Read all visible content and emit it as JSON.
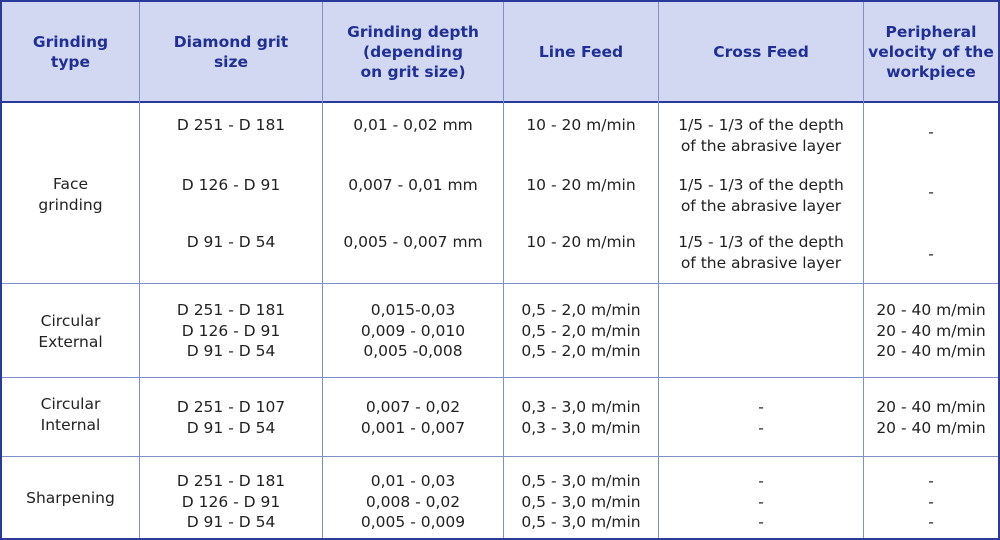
{
  "headers": {
    "grinding_type": "Grinding\ntype",
    "diamond_grit_size": "Diamond grit\nsize",
    "grinding_depth": "Grinding depth\n(depending\non grit size)",
    "line_feed": "Line Feed",
    "cross_feed": "Cross Feed",
    "peripheral_velocity": "Peripheral\nvelocity of the\nworkpiece"
  },
  "face": {
    "type": "Face\ngrinding",
    "r1": {
      "grit": "D 251 - D 181",
      "depth": "0,01 - 0,02 mm",
      "line": "10 - 20 m/min",
      "cross": "1/5  -  1/3 of the depth\nof the  abrasive layer",
      "vel": "-"
    },
    "r2": {
      "grit": "D 126 - D 91",
      "depth": "0,007 - 0,01 mm",
      "line": "10 -  20 m/min",
      "cross": "1/5 - 1/3 of the  depth\nof the abrasive layer",
      "vel": "-"
    },
    "r3": {
      "grit": "D 91 - D 54",
      "depth": "0,005 - 0,007 mm",
      "line": "10 -   20 m/min",
      "cross": "1/5 - 1/3 of the depth\nof the abrasive layer",
      "vel": "-"
    }
  },
  "circular_external": {
    "type": "Circular\nExternal",
    "grit": "D 251 - D 181\nD 126 - D 91\nD 91 - D 54",
    "depth": "0,015-0,03\n0,009 - 0,010\n0,005 -0,008",
    "line": "0,5 - 2,0 m/min\n0,5 - 2,0 m/min\n0,5 - 2,0 m/min",
    "cross": "",
    "vel": "20 - 40 m/min\n20 - 40 m/min\n20 - 40 m/min"
  },
  "circular_internal": {
    "type": "Circular\nInternal",
    "grit": "D 251 -   D 107\nD 91 - D 54",
    "depth": "0,007 - 0,02\n0,001 - 0,007",
    "line": "0,3 - 3,0 m/min\n0,3 - 3,0 m/min",
    "cross": "-\n-",
    "vel": "20 - 40 m/min\n20 - 40 m/min"
  },
  "sharpening": {
    "type": "Sharpening",
    "grit": "D 251 -   D 181\nD 126 - D 91\nD 91 - D 54",
    "depth": "0,01 - 0,03\n0,008 - 0,02\n0,005 - 0,009",
    "line": "0,5 - 3,0 m/min\n0,5 - 3,0 m/min\n0,5 - 3,0 m/min",
    "cross": "-\n-\n-",
    "vel": "-\n-\n-"
  }
}
